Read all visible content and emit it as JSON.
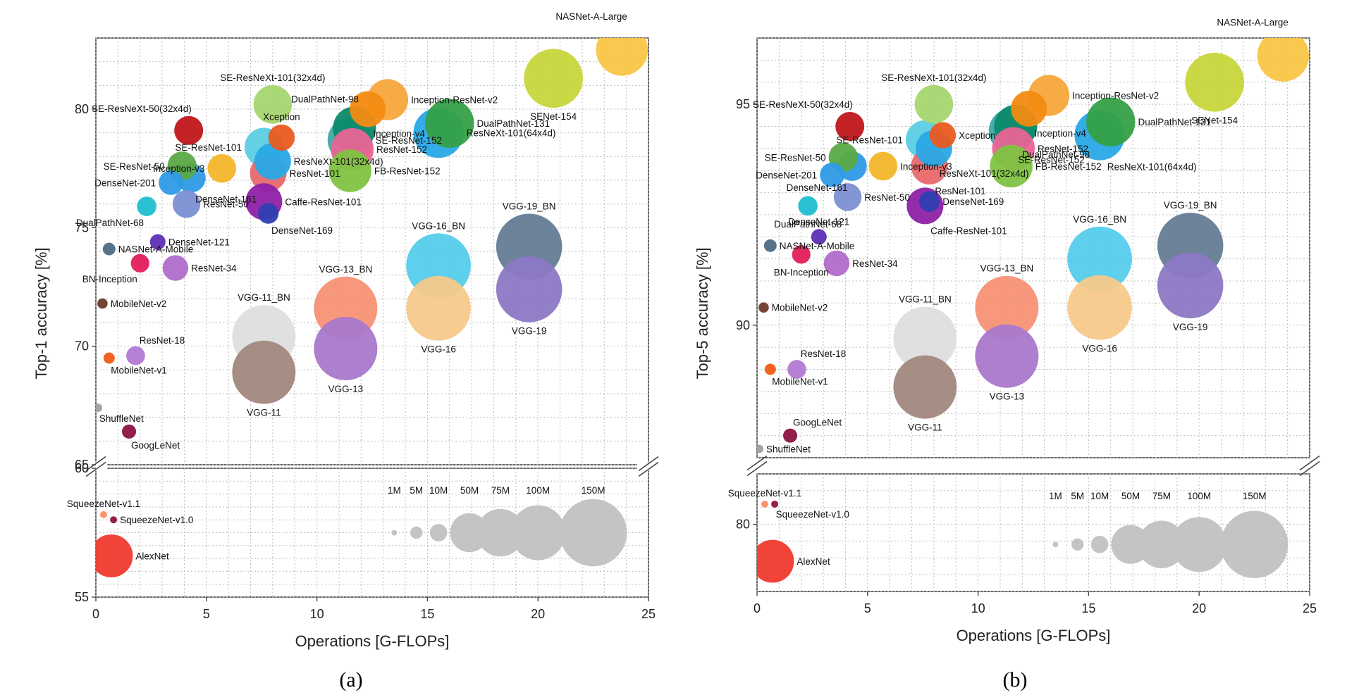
{
  "figure": {
    "caption_a": "(a)",
    "caption_b": "(b)"
  },
  "chart_data": [
    {
      "type": "scatter",
      "subtype": "bubble",
      "title": "",
      "xlabel": "Operations [G-FLOPs]",
      "ylabel": "Top-1 accuracy [%]",
      "xlim": [
        0,
        25
      ],
      "ylim_upper": [
        65,
        83
      ],
      "ylim_lower": [
        55,
        60
      ],
      "xticks": [
        "0",
        "5",
        "10",
        "15",
        "20",
        "25"
      ],
      "yticks_upper": [
        "65",
        "70",
        "75",
        "80"
      ],
      "yticks_lower": [
        "55",
        "60"
      ],
      "grid": true,
      "points": [
        {
          "name": "NASNet-A-Large",
          "x": 23.8,
          "y": 82.5,
          "params": 88.9,
          "color": "#f9c545",
          "label_pos": "above-left"
        },
        {
          "name": "SENet-154",
          "x": 20.7,
          "y": 81.3,
          "params": 115.1,
          "color": "#c6d63a",
          "label_pos": "below"
        },
        {
          "name": "SE-ResNeXt-101(32x4d)",
          "x": 8.0,
          "y": 80.2,
          "params": 49.0,
          "color": "#a5d66f",
          "label_pos": "above"
        },
        {
          "name": "Inception-ResNet-v2",
          "x": 13.2,
          "y": 80.4,
          "params": 55.8,
          "color": "#f6a63b",
          "label_pos": "right"
        },
        {
          "name": "Inception-v4",
          "x": 12.3,
          "y": 80.0,
          "params": 42.7,
          "color": "#f38b12",
          "label_pos": "below-right"
        },
        {
          "name": "SE-ResNeXt-50(32x4d)",
          "x": 4.2,
          "y": 79.1,
          "params": 27.6,
          "color": "#c0161b",
          "label_pos": "above-left"
        },
        {
          "name": "Xception",
          "x": 8.4,
          "y": 78.8,
          "params": 22.9,
          "color": "#ea5a1f",
          "label_pos": "above"
        },
        {
          "name": "DualPathNet-131",
          "x": 16.0,
          "y": 79.4,
          "params": 79.3,
          "color": "#35a047",
          "label_pos": "right"
        },
        {
          "name": "DualPathNet-98",
          "x": 11.7,
          "y": 79.2,
          "params": 61.6,
          "color": "#0b8a6c",
          "label_pos": "above-left"
        },
        {
          "name": "ResNeXt-101(64x4d)",
          "x": 15.5,
          "y": 79.0,
          "params": 83.5,
          "color": "#29a8e6",
          "label_pos": "right"
        },
        {
          "name": "SE-ResNet-152",
          "x": 11.5,
          "y": 78.7,
          "params": 66.8,
          "color": "#3eaaa6",
          "label_pos": "right"
        },
        {
          "name": "ResNet-152",
          "x": 11.6,
          "y": 78.3,
          "params": 60.2,
          "color": "#e96493",
          "label_pos": "right"
        },
        {
          "name": "FB-ResNet-152",
          "x": 11.5,
          "y": 77.4,
          "params": 60.2,
          "color": "#80c342",
          "label_pos": "right"
        },
        {
          "name": "SE-ResNet-101",
          "x": 7.6,
          "y": 78.4,
          "params": 49.3,
          "color": "#5bcde2",
          "label_pos": "left"
        },
        {
          "name": "ResNeXt-101(32x4d)",
          "x": 8.0,
          "y": 77.8,
          "params": 44.2,
          "color": "#29a8e6",
          "label_pos": "right"
        },
        {
          "name": "ResNet-101",
          "x": 7.8,
          "y": 77.3,
          "params": 44.5,
          "color": "#e8696b",
          "label_pos": "right"
        },
        {
          "name": "SE-ResNet-50",
          "x": 3.9,
          "y": 77.6,
          "params": 28.1,
          "color": "#5aa946",
          "label_pos": "left"
        },
        {
          "name": "Inception-v3",
          "x": 5.7,
          "y": 77.5,
          "params": 27.2,
          "color": "#f4b62a",
          "label_pos": "left"
        },
        {
          "name": "DenseNet-201",
          "x": 3.4,
          "y": 76.9,
          "params": 20.0,
          "color": "#2e9ae6",
          "label_pos": "left"
        },
        {
          "name": "DenseNet-161",
          "x": 4.3,
          "y": 77.1,
          "params": 28.7,
          "color": "#2e9ae6",
          "label_pos": "below-right"
        },
        {
          "name": "ResNet-50",
          "x": 4.1,
          "y": 76.0,
          "params": 25.6,
          "color": "#7b8fd3",
          "label_pos": "right"
        },
        {
          "name": "Caffe-ResNet-101",
          "x": 7.6,
          "y": 76.1,
          "params": 44.5,
          "color": "#8e21a7",
          "label_pos": "right"
        },
        {
          "name": "DenseNet-169",
          "x": 7.8,
          "y": 75.6,
          "params": 14.1,
          "color": "#2e3fb0",
          "label_pos": "below-right"
        },
        {
          "name": "DualPathNet-68",
          "x": 2.3,
          "y": 75.9,
          "params": 12.6,
          "color": "#1fbfd0",
          "label_pos": "below-left"
        },
        {
          "name": "DenseNet-121",
          "x": 2.8,
          "y": 74.4,
          "params": 8.0,
          "color": "#5c2fb5",
          "label_pos": "right"
        },
        {
          "name": "NASNet-A-Mobile",
          "x": 0.6,
          "y": 74.1,
          "params": 5.3,
          "color": "#4d6c86",
          "label_pos": "right"
        },
        {
          "name": "BN-Inception",
          "x": 2.0,
          "y": 73.5,
          "params": 11.3,
          "color": "#e31e5a",
          "label_pos": "below-left"
        },
        {
          "name": "ResNet-34",
          "x": 3.6,
          "y": 73.3,
          "params": 21.8,
          "color": "#b06cc9",
          "label_pos": "right"
        },
        {
          "name": "MobileNet-v2",
          "x": 0.3,
          "y": 71.8,
          "params": 3.5,
          "color": "#6d3a2b",
          "label_pos": "right"
        },
        {
          "name": "ResNet-18",
          "x": 1.8,
          "y": 69.6,
          "params": 11.7,
          "color": "#b27ad3",
          "label_pos": "above-right"
        },
        {
          "name": "MobileNet-v1",
          "x": 0.6,
          "y": 69.5,
          "params": 4.2,
          "color": "#f25a12",
          "label_pos": "below-right"
        },
        {
          "name": "ShuffleNet",
          "x": 0.1,
          "y": 67.4,
          "params": 2.3,
          "color": "#a0a0a0",
          "label_pos": "below-right"
        },
        {
          "name": "GoogLeNet",
          "x": 1.5,
          "y": 66.4,
          "params": 6.6,
          "color": "#8c1342",
          "label_pos": "below-right"
        },
        {
          "name": "VGG-19_BN",
          "x": 19.6,
          "y": 74.2,
          "params": 143.7,
          "color": "#647c94",
          "label_pos": "above"
        },
        {
          "name": "VGG-19",
          "x": 19.6,
          "y": 72.4,
          "params": 143.7,
          "color": "#8d78c5",
          "label_pos": "below"
        },
        {
          "name": "VGG-16_BN",
          "x": 15.5,
          "y": 73.4,
          "params": 138.4,
          "color": "#55cdec",
          "label_pos": "above"
        },
        {
          "name": "VGG-16",
          "x": 15.5,
          "y": 71.6,
          "params": 138.4,
          "color": "#f5c98a",
          "label_pos": "below"
        },
        {
          "name": "VGG-13_BN",
          "x": 11.3,
          "y": 71.6,
          "params": 133.1,
          "color": "#f79276",
          "label_pos": "above"
        },
        {
          "name": "VGG-13",
          "x": 11.3,
          "y": 69.9,
          "params": 133.1,
          "color": "#a978cb",
          "label_pos": "below"
        },
        {
          "name": "VGG-11_BN",
          "x": 7.6,
          "y": 70.4,
          "params": 132.9,
          "color": "#dedede",
          "label_pos": "above"
        },
        {
          "name": "VGG-11",
          "x": 7.6,
          "y": 68.9,
          "params": 132.9,
          "color": "#a1887e",
          "label_pos": "below"
        },
        {
          "name": "SqueezeNet-v1.1",
          "x": 0.35,
          "y": 58.2,
          "params": 1.2,
          "color": "#f79067",
          "label_pos": "above"
        },
        {
          "name": "SqueezeNet-v1.0",
          "x": 0.8,
          "y": 58.0,
          "params": 1.2,
          "color": "#8c1342",
          "label_pos": "right"
        },
        {
          "name": "AlexNet",
          "x": 0.7,
          "y": 56.6,
          "params": 61.1,
          "color": "#f03a2e",
          "label_pos": "right"
        }
      ],
      "size_legend": {
        "labels": [
          "1M",
          "5M",
          "10M",
          "50M",
          "75M",
          "100M",
          "150M"
        ],
        "values": [
          1,
          5,
          10,
          50,
          75,
          100,
          150
        ],
        "x": [
          13.5,
          14.5,
          15.5,
          16.9,
          18.3,
          20.0,
          22.5
        ],
        "y": 57.5,
        "color": "#c4c4c4"
      }
    },
    {
      "type": "scatter",
      "subtype": "bubble",
      "title": "",
      "xlabel": "Operations [G-FLOPs]",
      "ylabel": "Top-5 accuracy [%]",
      "xlim": [
        0,
        25
      ],
      "ylim_upper": [
        87.0,
        96.5
      ],
      "ylim_lower": [
        78.0,
        81.5
      ],
      "xticks": [
        "0",
        "5",
        "10",
        "15",
        "20",
        "25"
      ],
      "yticks_upper": [
        "90",
        "95"
      ],
      "yticks_lower": [
        "80"
      ],
      "grid": true,
      "points": [
        {
          "name": "NASNet-A-Large",
          "x": 23.8,
          "y": 96.1,
          "params": 88.9,
          "color": "#f9c545",
          "label_pos": "above-left"
        },
        {
          "name": "SENet-154",
          "x": 20.7,
          "y": 95.5,
          "params": 115.1,
          "color": "#c6d63a",
          "label_pos": "below"
        },
        {
          "name": "SE-ResNeXt-101(32x4d)",
          "x": 8.0,
          "y": 95.0,
          "params": 49.0,
          "color": "#a5d66f",
          "label_pos": "above"
        },
        {
          "name": "Inception-ResNet-v2",
          "x": 13.2,
          "y": 95.2,
          "params": 55.8,
          "color": "#f6a63b",
          "label_pos": "right"
        },
        {
          "name": "Inception-v4",
          "x": 12.3,
          "y": 94.9,
          "params": 42.7,
          "color": "#f38b12",
          "label_pos": "below-right"
        },
        {
          "name": "SE-ResNeXt-50(32x4d)",
          "x": 4.2,
          "y": 94.5,
          "params": 27.6,
          "color": "#c0161b",
          "label_pos": "above-left"
        },
        {
          "name": "Xception",
          "x": 8.4,
          "y": 94.3,
          "params": 22.9,
          "color": "#ea5a1f",
          "label_pos": "right"
        },
        {
          "name": "DualPathNet-131",
          "x": 16.0,
          "y": 94.6,
          "params": 79.3,
          "color": "#35a047",
          "label_pos": "right"
        },
        {
          "name": "DualPathNet-98",
          "x": 11.7,
          "y": 94.5,
          "params": 61.6,
          "color": "#0b8a6c",
          "label_pos": "below-right"
        },
        {
          "name": "SE-ResNet-152",
          "x": 11.5,
          "y": 94.4,
          "params": 66.8,
          "color": "#3eaaa6",
          "label_pos": "below-right"
        },
        {
          "name": "ResNeXt-101(64x4d)",
          "x": 15.5,
          "y": 94.3,
          "params": 83.5,
          "color": "#29a8e6",
          "label_pos": "below-right"
        },
        {
          "name": "SE-ResNet-101",
          "x": 7.6,
          "y": 94.2,
          "params": 49.3,
          "color": "#5bcde2",
          "label_pos": "left"
        },
        {
          "name": "ResNet-152",
          "x": 11.6,
          "y": 94.0,
          "params": 60.2,
          "color": "#e96493",
          "label_pos": "right"
        },
        {
          "name": "ResNeXt-101(32x4d)",
          "x": 8.0,
          "y": 94.0,
          "params": 44.2,
          "color": "#29a8e6",
          "label_pos": "below-right"
        },
        {
          "name": "SE-ResNet-50",
          "x": 3.9,
          "y": 93.8,
          "params": 28.1,
          "color": "#5aa946",
          "label_pos": "left"
        },
        {
          "name": "DenseNet-161",
          "x": 4.3,
          "y": 93.6,
          "params": 28.7,
          "color": "#2e9ae6",
          "label_pos": "below-left"
        },
        {
          "name": "Inception-v3",
          "x": 5.7,
          "y": 93.6,
          "params": 27.2,
          "color": "#f4b62a",
          "label_pos": "right"
        },
        {
          "name": "ResNet-101",
          "x": 7.8,
          "y": 93.6,
          "params": 44.5,
          "color": "#e8696b",
          "label_pos": "below-right"
        },
        {
          "name": "FB-ResNet-152",
          "x": 11.5,
          "y": 93.6,
          "params": 60.2,
          "color": "#80c342",
          "label_pos": "right"
        },
        {
          "name": "DenseNet-201",
          "x": 3.4,
          "y": 93.4,
          "params": 20.0,
          "color": "#2e9ae6",
          "label_pos": "left"
        },
        {
          "name": "ResNet-50",
          "x": 4.1,
          "y": 92.9,
          "params": 25.6,
          "color": "#7b8fd3",
          "label_pos": "right"
        },
        {
          "name": "DenseNet-169",
          "x": 7.8,
          "y": 92.8,
          "params": 14.1,
          "color": "#2e3fb0",
          "label_pos": "right"
        },
        {
          "name": "Caffe-ResNet-101",
          "x": 7.6,
          "y": 92.7,
          "params": 44.5,
          "color": "#8e21a7",
          "label_pos": "below-right"
        },
        {
          "name": "DualPathNet-68",
          "x": 2.3,
          "y": 92.7,
          "params": 12.6,
          "color": "#1fbfd0",
          "label_pos": "below"
        },
        {
          "name": "DenseNet-121",
          "x": 2.8,
          "y": 92.0,
          "params": 8.0,
          "color": "#5c2fb5",
          "label_pos": "above"
        },
        {
          "name": "NASNet-A-Mobile",
          "x": 0.6,
          "y": 91.8,
          "params": 5.3,
          "color": "#4d6c86",
          "label_pos": "right"
        },
        {
          "name": "BN-Inception",
          "x": 2.0,
          "y": 91.6,
          "params": 11.3,
          "color": "#e31e5a",
          "label_pos": "below"
        },
        {
          "name": "ResNet-34",
          "x": 3.6,
          "y": 91.4,
          "params": 21.8,
          "color": "#b06cc9",
          "label_pos": "right"
        },
        {
          "name": "MobileNet-v2",
          "x": 0.3,
          "y": 90.4,
          "params": 3.5,
          "color": "#6d3a2b",
          "label_pos": "right"
        },
        {
          "name": "ResNet-18",
          "x": 1.8,
          "y": 89.0,
          "params": 11.7,
          "color": "#b27ad3",
          "label_pos": "above-right"
        },
        {
          "name": "MobileNet-v1",
          "x": 0.6,
          "y": 89.0,
          "params": 4.2,
          "color": "#f25a12",
          "label_pos": "below-right"
        },
        {
          "name": "GoogLeNet",
          "x": 1.5,
          "y": 87.5,
          "params": 6.6,
          "color": "#8c1342",
          "label_pos": "above-right"
        },
        {
          "name": "ShuffleNet",
          "x": 0.1,
          "y": 87.2,
          "params": 2.3,
          "color": "#a0a0a0",
          "label_pos": "right"
        },
        {
          "name": "VGG-19_BN",
          "x": 19.6,
          "y": 91.8,
          "params": 143.7,
          "color": "#647c94",
          "label_pos": "above"
        },
        {
          "name": "VGG-19",
          "x": 19.6,
          "y": 90.9,
          "params": 143.7,
          "color": "#8d78c5",
          "label_pos": "below"
        },
        {
          "name": "VGG-16_BN",
          "x": 15.5,
          "y": 91.5,
          "params": 138.4,
          "color": "#55cdec",
          "label_pos": "above"
        },
        {
          "name": "VGG-16",
          "x": 15.5,
          "y": 90.4,
          "params": 138.4,
          "color": "#f5c98a",
          "label_pos": "below"
        },
        {
          "name": "VGG-13_BN",
          "x": 11.3,
          "y": 90.4,
          "params": 133.1,
          "color": "#f79276",
          "label_pos": "above"
        },
        {
          "name": "VGG-13",
          "x": 11.3,
          "y": 89.3,
          "params": 133.1,
          "color": "#a978cb",
          "label_pos": "below"
        },
        {
          "name": "VGG-11_BN",
          "x": 7.6,
          "y": 89.7,
          "params": 132.9,
          "color": "#dedede",
          "label_pos": "above"
        },
        {
          "name": "VGG-11",
          "x": 7.6,
          "y": 88.6,
          "params": 132.9,
          "color": "#a1887e",
          "label_pos": "below"
        },
        {
          "name": "SqueezeNet-v1.1",
          "x": 0.35,
          "y": 80.6,
          "params": 1.2,
          "color": "#f79067",
          "label_pos": "above"
        },
        {
          "name": "SqueezeNet-v1.0",
          "x": 0.8,
          "y": 80.6,
          "params": 1.2,
          "color": "#8c1342",
          "label_pos": "below-right"
        },
        {
          "name": "AlexNet",
          "x": 0.7,
          "y": 78.9,
          "params": 61.1,
          "color": "#f03a2e",
          "label_pos": "right"
        }
      ],
      "size_legend": {
        "labels": [
          "1M",
          "5M",
          "10M",
          "50M",
          "75M",
          "100M",
          "150M"
        ],
        "values": [
          1,
          5,
          10,
          50,
          75,
          100,
          150
        ],
        "x": [
          13.5,
          14.5,
          15.5,
          16.9,
          18.3,
          20.0,
          22.5
        ],
        "y": 79.4,
        "color": "#c4c4c4"
      }
    }
  ]
}
